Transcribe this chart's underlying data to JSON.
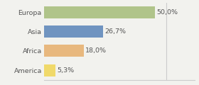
{
  "categories": [
    "Europa",
    "Asia",
    "Africa",
    "America"
  ],
  "values": [
    50.0,
    26.7,
    18.0,
    5.3
  ],
  "labels": [
    "50,0%",
    "26,7%",
    "18,0%",
    "5,3%"
  ],
  "colors": [
    "#b0c48a",
    "#7094c0",
    "#e8b87e",
    "#f0d96a"
  ],
  "xlim": [
    0,
    68
  ],
  "background_color": "#f2f2ee",
  "bar_height": 0.62,
  "label_fontsize": 6.8,
  "tick_fontsize": 6.8,
  "vline_x": 55,
  "vline_color": "#cccccc"
}
